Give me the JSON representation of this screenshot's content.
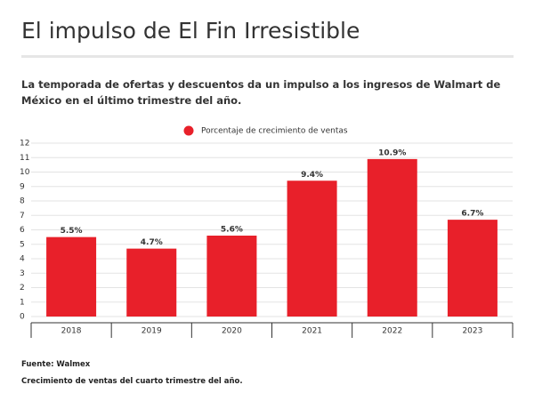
{
  "chart_data": {
    "type": "bar",
    "title": "El impulso de El Fin Irresistible",
    "subtitle": "La temporada de ofertas y descuentos da un impulso a los ingresos de Walmart de México en el último trimestre del año.",
    "categories": [
      "2018",
      "2019",
      "2020",
      "2021",
      "2022",
      "2023"
    ],
    "series": [
      {
        "name": "Porcentaje de crecimiento de ventas",
        "color": "#e8202a",
        "values": [
          5.5,
          4.7,
          5.6,
          9.4,
          10.9,
          6.7
        ],
        "value_labels": [
          "5.5%",
          "4.7%",
          "5.6%",
          "9.4%",
          "10.9%",
          "6.7%"
        ]
      }
    ],
    "ylim": [
      0,
      12
    ],
    "yticks": [
      0,
      1,
      2,
      3,
      4,
      5,
      6,
      7,
      8,
      9,
      10,
      11,
      12
    ],
    "grid": true,
    "source": "Fuente: Walmex",
    "note": "Crecimiento de ventas del cuarto trimestre del año."
  }
}
